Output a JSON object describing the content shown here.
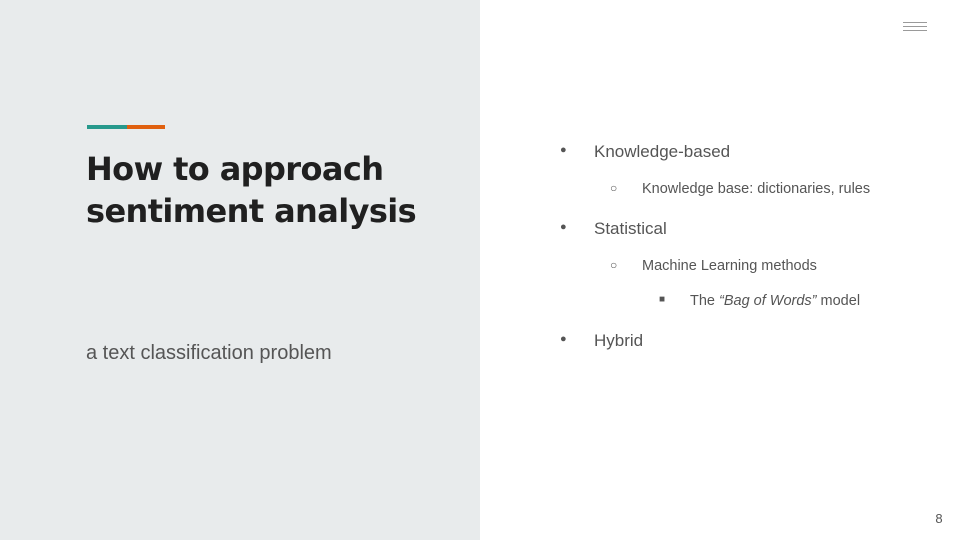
{
  "slide": {
    "title_line1": "How to approach",
    "title_line2": "sentiment analysis",
    "subtitle": "a text classification problem",
    "page_number": "8",
    "colors": {
      "left_panel_bg": "#e8ebec",
      "accent_teal": "#27998c",
      "accent_orange": "#e0600f"
    }
  },
  "bullets": [
    {
      "marker": "●",
      "text": "Knowledge-based"
    },
    {
      "marker": "○",
      "text": "Knowledge base: dictionaries, rules"
    },
    {
      "marker": "●",
      "text": "Statistical"
    },
    {
      "marker": "○",
      "text": "Machine Learning methods"
    },
    {
      "marker": "■",
      "pre": "The ",
      "em": "“Bag of Words”",
      "post": " model"
    },
    {
      "marker": "●",
      "text": "Hybrid"
    }
  ],
  "icons": {
    "menu": "hamburger-menu-icon"
  }
}
